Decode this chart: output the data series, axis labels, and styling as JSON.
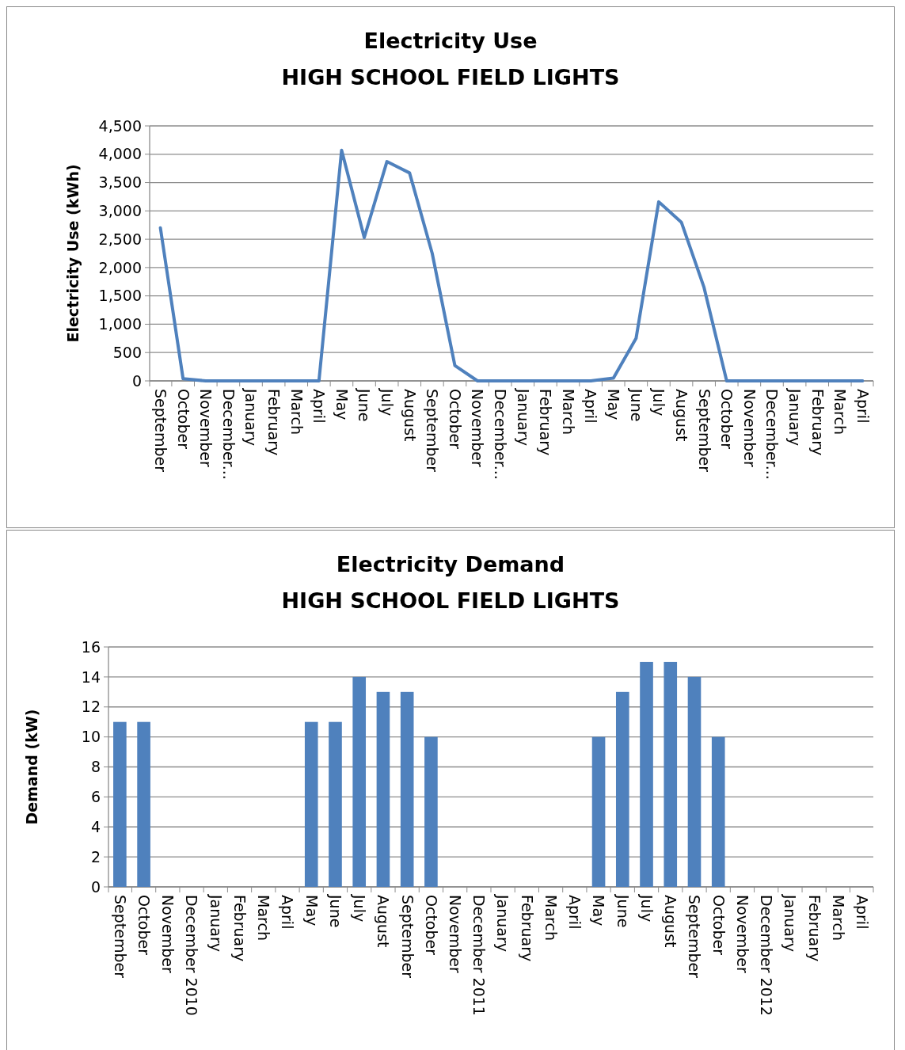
{
  "chart_data": [
    {
      "type": "line",
      "title": "Electricity Use",
      "subtitle": "HIGH SCHOOL FIELD LIGHTS",
      "ylabel": "Electricity Use (kWh)",
      "categories": [
        "September",
        "October",
        "November",
        "December...",
        "January",
        "February",
        "March",
        "April",
        "May",
        "June",
        "July",
        "August",
        "September",
        "October",
        "November",
        "December...",
        "January",
        "February",
        "March",
        "April",
        "May",
        "June",
        "July",
        "August",
        "September",
        "October",
        "November",
        "December...",
        "January",
        "February",
        "March",
        "April"
      ],
      "series": [
        {
          "color": "#4f81bd",
          "values": [
            2700,
            40,
            0,
            0,
            0,
            0,
            0,
            0,
            4070,
            2530,
            3870,
            3670,
            2250,
            270,
            0,
            0,
            0,
            0,
            0,
            0,
            50,
            750,
            3160,
            2800,
            1650,
            0,
            0,
            0,
            0,
            0,
            0,
            0
          ]
        }
      ],
      "ylim": [
        0,
        4500
      ],
      "yticks": [
        {
          "value": 0,
          "label": "0"
        },
        {
          "value": 500,
          "label": "500"
        },
        {
          "value": 1000,
          "label": "1,000"
        },
        {
          "value": 1500,
          "label": "1,500"
        },
        {
          "value": 2000,
          "label": "2,000"
        },
        {
          "value": 2500,
          "label": "2,500"
        },
        {
          "value": 3000,
          "label": "3,000"
        },
        {
          "value": 3500,
          "label": "3,500"
        },
        {
          "value": 4000,
          "label": "4,000"
        },
        {
          "value": 4500,
          "label": "4,500"
        }
      ],
      "grid": "y",
      "marker": "none",
      "line_style": "solid"
    },
    {
      "type": "bar",
      "title": "Electricity Demand",
      "subtitle": "HIGH SCHOOL FIELD LIGHTS",
      "ylabel": "Demand (kW)",
      "categories": [
        "September",
        "October",
        "November",
        "December 2010",
        "January",
        "February",
        "March",
        "April",
        "May",
        "June",
        "July",
        "August",
        "September",
        "October",
        "November",
        "December 2011",
        "January",
        "February",
        "March",
        "April",
        "May",
        "June",
        "July",
        "August",
        "September",
        "October",
        "November",
        "December 2012",
        "January",
        "February",
        "March",
        "April"
      ],
      "series": [
        {
          "color": "#4f81bd",
          "values": [
            11,
            11,
            null,
            null,
            null,
            null,
            null,
            null,
            11,
            11,
            14,
            13,
            13,
            10,
            null,
            null,
            null,
            null,
            null,
            null,
            10,
            13,
            15,
            15,
            14,
            10,
            null,
            null,
            null,
            null,
            null,
            null
          ]
        }
      ],
      "ylim": [
        0,
        16
      ],
      "yticks": [
        0,
        2,
        4,
        6,
        8,
        10,
        12,
        14,
        16
      ],
      "grid": "y"
    }
  ]
}
